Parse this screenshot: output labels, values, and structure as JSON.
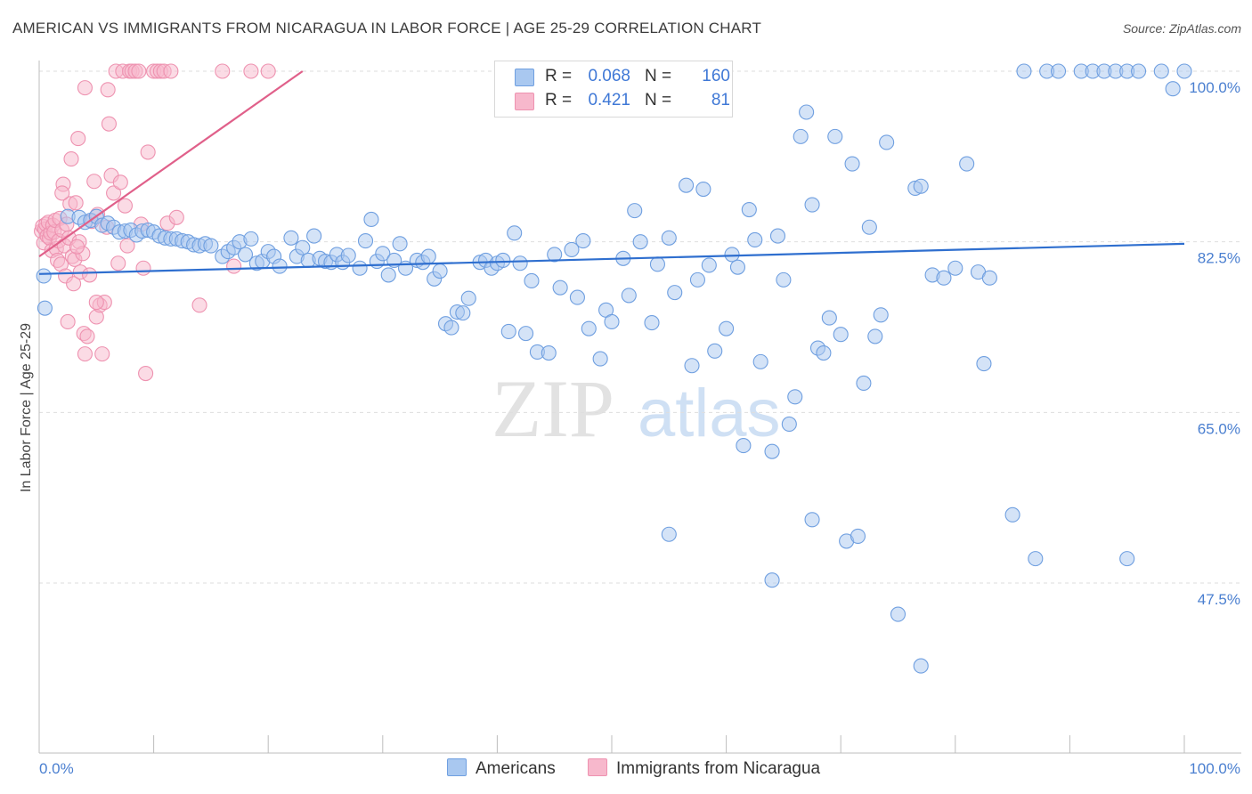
{
  "header": {
    "title": "AMERICAN VS IMMIGRANTS FROM NICARAGUA IN LABOR FORCE | AGE 25-29 CORRELATION CHART",
    "source": "Source: ZipAtlas.com"
  },
  "watermark": {
    "zip": "ZIP",
    "atlas": "atlas"
  },
  "colors": {
    "blue_fill": "#a9c8f0",
    "blue_stroke": "#6f9fe0",
    "blue_line": "#2f6fcf",
    "pink_fill": "#f7b8cc",
    "pink_stroke": "#ee92b0",
    "pink_line": "#e0608a",
    "tick_text": "#4a7fd0"
  },
  "legend": {
    "rows": [
      {
        "r_label": "R =",
        "r_value": "0.068",
        "n_label": "N =",
        "n_value": "160",
        "series": "Americans"
      },
      {
        "r_label": "R =",
        "r_value": "0.421",
        "n_label": "N =",
        "n_value": "81",
        "series": "Immigrants from Nicaragua"
      }
    ]
  },
  "bottom_legend": {
    "americans": "Americans",
    "nicaragua": "Immigrants from Nicaragua"
  },
  "chart_data": {
    "type": "scatter",
    "title": "AMERICAN VS IMMIGRANTS FROM NICARAGUA IN LABOR FORCE | AGE 25-29 CORRELATION CHART",
    "xlabel": "",
    "ylabel": "In Labor Force | Age 25-29",
    "xlim": [
      0,
      100
    ],
    "ylim": [
      33,
      101.5
    ],
    "x_tick_labels": [
      "0.0%",
      "100.0%"
    ],
    "y_ticks": [
      47.5,
      65.0,
      82.5,
      100.0
    ],
    "y_tick_labels": [
      "47.5%",
      "65.0%",
      "82.5%",
      "100.0%"
    ],
    "grid": true,
    "series": [
      {
        "name": "Americans",
        "color": "#a9c8f0",
        "trend": {
          "x": [
            0,
            100
          ],
          "y": [
            79.2,
            82.3
          ]
        },
        "points": [
          [
            0.4,
            79.0
          ],
          [
            0.5,
            75.7
          ],
          [
            2.5,
            85.1
          ],
          [
            3.5,
            85.0
          ],
          [
            4.0,
            84.5
          ],
          [
            4.5,
            84.7
          ],
          [
            5.0,
            85.1
          ],
          [
            5.5,
            84.2
          ],
          [
            6.0,
            84.4
          ],
          [
            6.5,
            84.0
          ],
          [
            7.0,
            83.5
          ],
          [
            7.5,
            83.6
          ],
          [
            8.0,
            83.7
          ],
          [
            8.5,
            83.2
          ],
          [
            9.0,
            83.6
          ],
          [
            9.5,
            83.7
          ],
          [
            10.0,
            83.5
          ],
          [
            10.5,
            83.1
          ],
          [
            11.0,
            82.9
          ],
          [
            11.5,
            82.8
          ],
          [
            12.0,
            82.8
          ],
          [
            12.5,
            82.6
          ],
          [
            13.0,
            82.5
          ],
          [
            13.5,
            82.2
          ],
          [
            14.0,
            82.1
          ],
          [
            14.5,
            82.3
          ],
          [
            15.0,
            82.1
          ],
          [
            16.0,
            81.0
          ],
          [
            16.5,
            81.5
          ],
          [
            17.0,
            81.9
          ],
          [
            17.5,
            82.5
          ],
          [
            18.0,
            81.2
          ],
          [
            18.5,
            82.8
          ],
          [
            19.0,
            80.3
          ],
          [
            19.5,
            80.5
          ],
          [
            20.0,
            81.5
          ],
          [
            20.5,
            81.0
          ],
          [
            21.0,
            80.0
          ],
          [
            22.0,
            82.9
          ],
          [
            22.5,
            81.0
          ],
          [
            23.0,
            81.9
          ],
          [
            23.5,
            80.6
          ],
          [
            24.0,
            83.1
          ],
          [
            24.5,
            80.8
          ],
          [
            25.0,
            80.5
          ],
          [
            25.5,
            80.4
          ],
          [
            26.0,
            81.2
          ],
          [
            26.5,
            80.4
          ],
          [
            27.0,
            81.1
          ],
          [
            28.0,
            79.8
          ],
          [
            28.5,
            82.6
          ],
          [
            29.0,
            84.8
          ],
          [
            29.5,
            80.5
          ],
          [
            30.0,
            81.3
          ],
          [
            30.5,
            79.1
          ],
          [
            31.0,
            80.6
          ],
          [
            31.5,
            82.3
          ],
          [
            32.0,
            79.8
          ],
          [
            33.0,
            80.6
          ],
          [
            33.5,
            80.4
          ],
          [
            34.0,
            81.0
          ],
          [
            34.5,
            78.7
          ],
          [
            35.0,
            79.5
          ],
          [
            35.5,
            74.1
          ],
          [
            36.0,
            73.7
          ],
          [
            36.5,
            75.3
          ],
          [
            37.0,
            75.2
          ],
          [
            37.5,
            76.7
          ],
          [
            38.5,
            80.4
          ],
          [
            39.0,
            80.6
          ],
          [
            39.5,
            79.8
          ],
          [
            40.0,
            80.3
          ],
          [
            40.5,
            80.6
          ],
          [
            41.0,
            73.3
          ],
          [
            41.5,
            83.4
          ],
          [
            42.0,
            80.3
          ],
          [
            42.5,
            73.1
          ],
          [
            43.0,
            78.5
          ],
          [
            43.5,
            71.2
          ],
          [
            44.5,
            71.1
          ],
          [
            45.0,
            81.2
          ],
          [
            45.5,
            77.8
          ],
          [
            46.5,
            81.7
          ],
          [
            47.0,
            76.8
          ],
          [
            47.5,
            82.6
          ],
          [
            48.0,
            73.6
          ],
          [
            49.0,
            70.5
          ],
          [
            49.5,
            75.5
          ],
          [
            50.0,
            74.3
          ],
          [
            51.0,
            80.8
          ],
          [
            51.5,
            77.0
          ],
          [
            52.0,
            85.7
          ],
          [
            52.5,
            82.5
          ],
          [
            53.5,
            74.2
          ],
          [
            54.0,
            80.2
          ],
          [
            55.0,
            82.9
          ],
          [
            55.5,
            77.3
          ],
          [
            56.5,
            88.3
          ],
          [
            57.0,
            69.8
          ],
          [
            57.5,
            78.6
          ],
          [
            58.0,
            87.9
          ],
          [
            58.5,
            80.1
          ],
          [
            59.0,
            71.3
          ],
          [
            60.0,
            73.6
          ],
          [
            60.5,
            81.2
          ],
          [
            61.0,
            79.9
          ],
          [
            61.5,
            61.6
          ],
          [
            62.0,
            85.8
          ],
          [
            62.5,
            82.7
          ],
          [
            63.0,
            70.2
          ],
          [
            64.0,
            61.0
          ],
          [
            64.5,
            83.1
          ],
          [
            65.0,
            78.6
          ],
          [
            65.5,
            63.8
          ],
          [
            66.0,
            66.6
          ],
          [
            66.5,
            93.3
          ],
          [
            67.0,
            95.8
          ],
          [
            67.5,
            86.3
          ],
          [
            68.0,
            71.6
          ],
          [
            68.5,
            71.1
          ],
          [
            69.0,
            74.7
          ],
          [
            69.5,
            93.3
          ],
          [
            70.0,
            73.0
          ],
          [
            71.0,
            90.5
          ],
          [
            72.0,
            68.0
          ],
          [
            72.5,
            84.0
          ],
          [
            73.0,
            72.8
          ],
          [
            73.5,
            75.0
          ],
          [
            74.0,
            92.7
          ],
          [
            75.0,
            44.3
          ],
          [
            76.5,
            88.0
          ],
          [
            77.0,
            88.2
          ],
          [
            78.0,
            79.1
          ],
          [
            79.0,
            78.8
          ],
          [
            80.0,
            79.8
          ],
          [
            81.0,
            90.5
          ],
          [
            82.0,
            79.4
          ],
          [
            82.5,
            70.0
          ],
          [
            83.0,
            78.8
          ],
          [
            85.0,
            54.5
          ],
          [
            86.0,
            100
          ],
          [
            88.0,
            100
          ],
          [
            89.0,
            100
          ],
          [
            91.0,
            100
          ],
          [
            92.0,
            100
          ],
          [
            93.0,
            100
          ],
          [
            94.0,
            100
          ],
          [
            95.0,
            100
          ],
          [
            96.0,
            100
          ],
          [
            98.0,
            100
          ],
          [
            99.0,
            98.2
          ],
          [
            100.0,
            100
          ],
          [
            70.5,
            51.8
          ],
          [
            71.5,
            52.3
          ],
          [
            67.5,
            54.0
          ],
          [
            64.0,
            47.8
          ],
          [
            55.0,
            52.5
          ],
          [
            95.0,
            50.0
          ],
          [
            87.0,
            50.0
          ],
          [
            77.0,
            39.0
          ]
        ]
      },
      {
        "name": "Immigrants from Nicaragua",
        "color": "#f7b8cc",
        "trend": {
          "x": [
            0,
            23
          ],
          "y": [
            81.0,
            100.0
          ]
        },
        "points": [
          [
            0.2,
            83.6
          ],
          [
            0.3,
            84.1
          ],
          [
            0.4,
            82.4
          ],
          [
            0.5,
            83.8
          ],
          [
            0.6,
            84.3
          ],
          [
            0.7,
            83.1
          ],
          [
            0.8,
            84.5
          ],
          [
            0.9,
            82.9
          ],
          [
            1.0,
            83.4
          ],
          [
            1.1,
            81.6
          ],
          [
            1.2,
            84.2
          ],
          [
            1.3,
            83.5
          ],
          [
            1.4,
            84.7
          ],
          [
            1.5,
            81.8
          ],
          [
            1.6,
            80.6
          ],
          [
            1.7,
            82.6
          ],
          [
            1.8,
            84.9
          ],
          [
            1.9,
            80.2
          ],
          [
            2.0,
            83.7
          ],
          [
            2.1,
            88.4
          ],
          [
            2.2,
            82.1
          ],
          [
            2.3,
            79.0
          ],
          [
            2.4,
            84.3
          ],
          [
            2.5,
            74.3
          ],
          [
            2.6,
            82.9
          ],
          [
            2.7,
            86.4
          ],
          [
            2.8,
            91.0
          ],
          [
            2.9,
            81.0
          ],
          [
            3.0,
            78.2
          ],
          [
            3.1,
            80.7
          ],
          [
            3.2,
            86.5
          ],
          [
            3.4,
            93.1
          ],
          [
            3.5,
            82.5
          ],
          [
            3.6,
            79.4
          ],
          [
            3.8,
            81.3
          ],
          [
            3.9,
            73.1
          ],
          [
            4.0,
            98.3
          ],
          [
            4.2,
            72.8
          ],
          [
            4.4,
            79.1
          ],
          [
            4.6,
            84.6
          ],
          [
            4.8,
            88.7
          ],
          [
            5.0,
            74.8
          ],
          [
            5.1,
            85.3
          ],
          [
            5.3,
            76.0
          ],
          [
            5.5,
            71.0
          ],
          [
            5.7,
            76.3
          ],
          [
            5.9,
            84.0
          ],
          [
            6.1,
            94.6
          ],
          [
            6.3,
            89.3
          ],
          [
            6.5,
            87.5
          ],
          [
            6.7,
            100
          ],
          [
            6.9,
            80.3
          ],
          [
            7.1,
            88.6
          ],
          [
            7.3,
            100
          ],
          [
            7.5,
            86.2
          ],
          [
            7.7,
            82.1
          ],
          [
            7.9,
            100
          ],
          [
            8.1,
            100
          ],
          [
            8.4,
            100
          ],
          [
            8.7,
            100
          ],
          [
            8.9,
            84.3
          ],
          [
            9.1,
            79.8
          ],
          [
            9.3,
            69.0
          ],
          [
            9.5,
            91.7
          ],
          [
            10.0,
            100
          ],
          [
            10.3,
            100
          ],
          [
            10.6,
            100
          ],
          [
            10.9,
            100
          ],
          [
            11.2,
            84.4
          ],
          [
            11.5,
            100
          ],
          [
            12.0,
            85.0
          ],
          [
            14.0,
            76.0
          ],
          [
            16.0,
            100
          ],
          [
            17.0,
            80.0
          ],
          [
            18.5,
            100
          ],
          [
            20.0,
            100
          ],
          [
            5.0,
            76.3
          ],
          [
            6.0,
            98.1
          ],
          [
            4.0,
            71.0
          ],
          [
            3.3,
            82.0
          ],
          [
            2.0,
            87.5
          ]
        ]
      }
    ]
  }
}
